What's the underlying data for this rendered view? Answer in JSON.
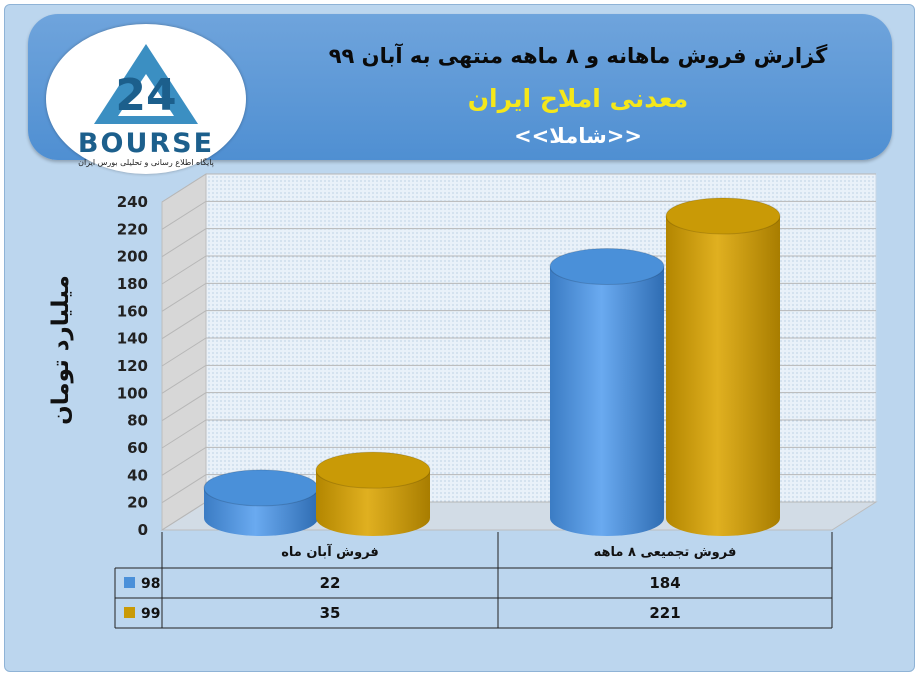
{
  "header": {
    "title_line1": "گزارش فروش ماهانه و ۸ ماهه منتهی به آبان ۹۹",
    "title_line2": "معدنی املاح ایران",
    "title_line3": "<<شاملا>>",
    "logo_text": "BOURSE",
    "logo_subtitle": "پایگاه اطلاع رسانی و تحلیلی بورس ایران"
  },
  "colors": {
    "series_98": "#4a90d9",
    "series_99": "#c99a06",
    "header_bg": "#5b97d6",
    "title_line2": "#f5e71a"
  },
  "chart_data": {
    "type": "bar",
    "title": "گزارش فروش ماهانه و ۸ ماهه منتهی به آبان ۹۹",
    "ylabel": "میلیارد تومان",
    "ylim": [
      0,
      240
    ],
    "yticks": [
      0,
      20,
      40,
      60,
      80,
      100,
      120,
      140,
      160,
      180,
      200,
      220,
      240
    ],
    "categories": [
      "فروش آبان  ماه",
      "فروش تجمیعی ۸ ماهه"
    ],
    "series": [
      {
        "name": "98",
        "values": [
          22,
          184
        ]
      },
      {
        "name": "99",
        "values": [
          35,
          221
        ]
      }
    ],
    "grid": true,
    "legend": "data-table"
  }
}
